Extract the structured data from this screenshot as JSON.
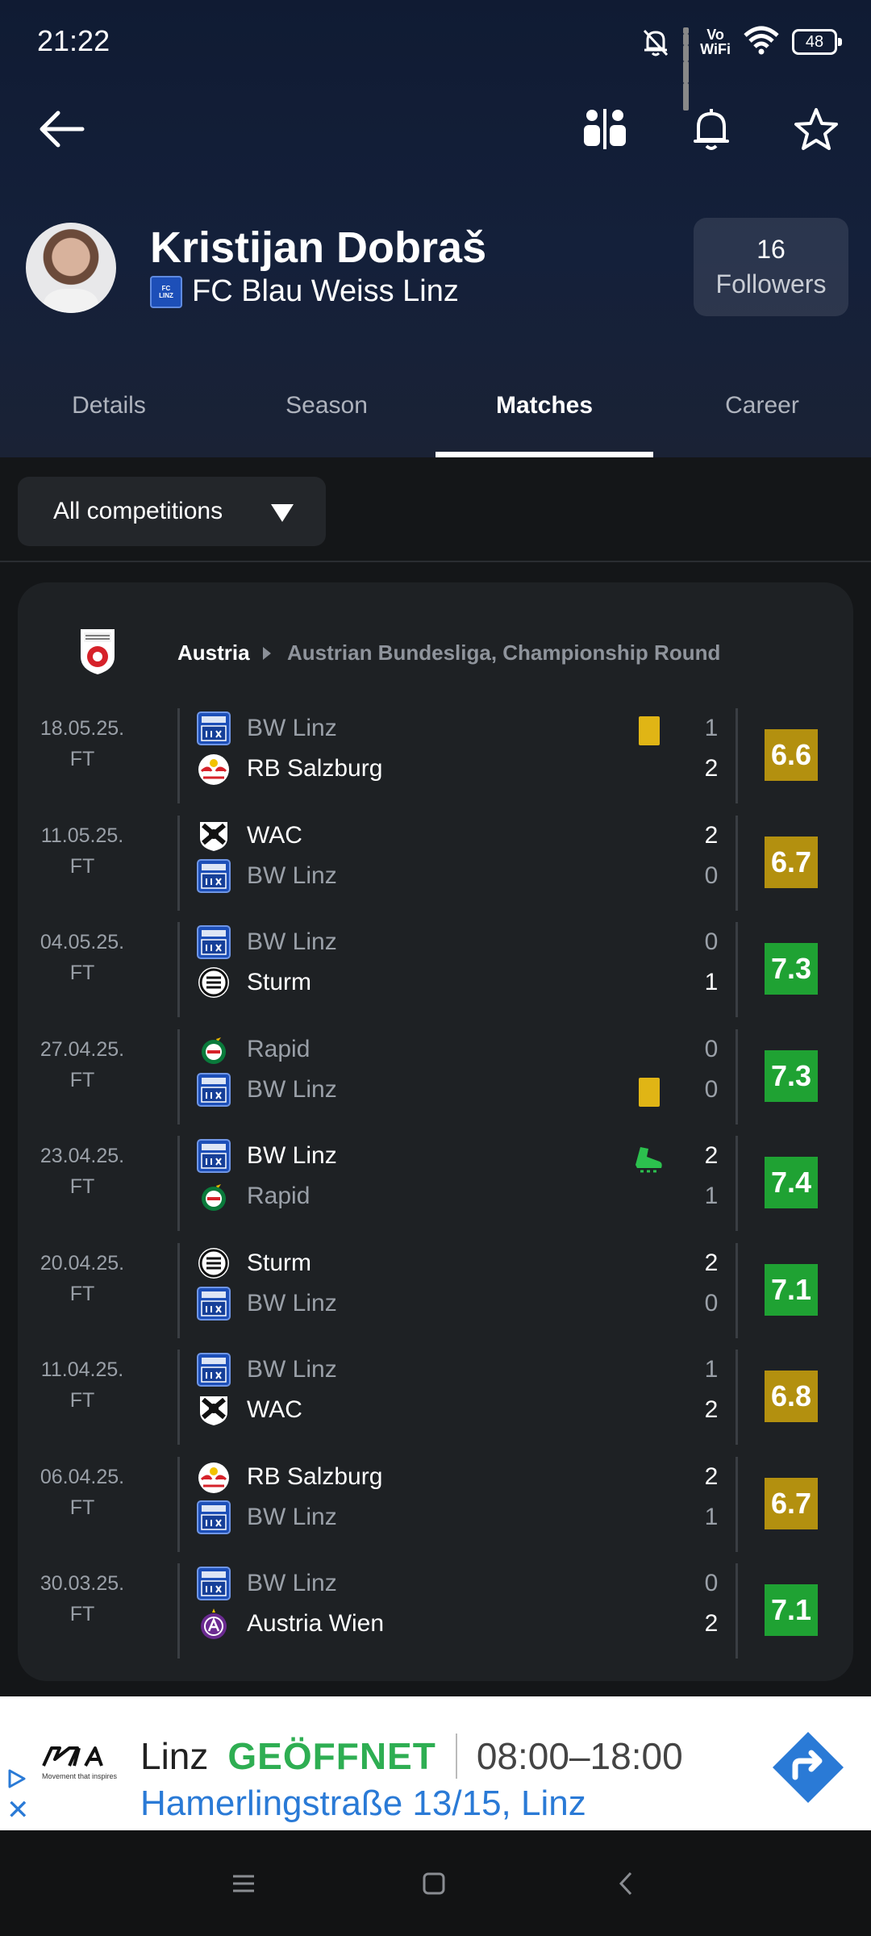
{
  "status_bar": {
    "time": "21:22",
    "vowifi_top": "Vo",
    "vowifi_bottom": "WiFi",
    "battery": "48"
  },
  "player": {
    "name": "Kristijan Dobraš",
    "club": "FC Blau Weiss Linz",
    "followers_count": "16",
    "followers_label": "Followers"
  },
  "tabs": [
    {
      "label": "Details",
      "active": false
    },
    {
      "label": "Season",
      "active": false
    },
    {
      "label": "Matches",
      "active": true
    },
    {
      "label": "Career",
      "active": false
    }
  ],
  "filter": {
    "label": "All competitions"
  },
  "competition": {
    "country": "Austria",
    "name": "Austrian Bundesliga, Championship Round"
  },
  "matches": [
    {
      "date": "18.05.25.",
      "status": "FT",
      "home": "BW Linz",
      "away": "RB Salzburg",
      "home_score": "1",
      "away_score": "2",
      "rating": "6.6",
      "rating_color": "#b3900f"
    },
    {
      "date": "11.05.25.",
      "status": "FT",
      "home": "WAC",
      "away": "BW Linz",
      "home_score": "2",
      "away_score": "0",
      "rating": "6.7",
      "rating_color": "#b3900f"
    },
    {
      "date": "04.05.25.",
      "status": "FT",
      "home": "BW Linz",
      "away": "Sturm",
      "home_score": "0",
      "away_score": "1",
      "rating": "7.3",
      "rating_color": "#1fa233"
    },
    {
      "date": "27.04.25.",
      "status": "FT",
      "home": "Rapid",
      "away": "BW Linz",
      "home_score": "0",
      "away_score": "0",
      "rating": "7.3",
      "rating_color": "#1fa233"
    },
    {
      "date": "23.04.25.",
      "status": "FT",
      "home": "BW Linz",
      "away": "Rapid",
      "home_score": "2",
      "away_score": "1",
      "rating": "7.4",
      "rating_color": "#1fa233"
    },
    {
      "date": "20.04.25.",
      "status": "FT",
      "home": "Sturm",
      "away": "BW Linz",
      "home_score": "2",
      "away_score": "0",
      "rating": "7.1",
      "rating_color": "#1fa233"
    },
    {
      "date": "11.04.25.",
      "status": "FT",
      "home": "BW Linz",
      "away": "WAC",
      "home_score": "1",
      "away_score": "2",
      "rating": "6.8",
      "rating_color": "#b3900f"
    },
    {
      "date": "06.04.25.",
      "status": "FT",
      "home": "RB Salzburg",
      "away": "BW Linz",
      "home_score": "2",
      "away_score": "1",
      "rating": "6.7",
      "rating_color": "#b3900f"
    },
    {
      "date": "30.03.25.",
      "status": "FT",
      "home": "BW Linz",
      "away": "Austria Wien",
      "home_score": "0",
      "away_score": "2",
      "rating": "7.1",
      "rating_color": "#1fa233"
    }
  ],
  "ad": {
    "city": "Linz",
    "open_status": "GEÖFFNET",
    "hours": "08:00–18:00",
    "address": "Hamerlingstraße 13/15, Linz",
    "brand_tagline": "Movement that inspires",
    "brand_name": "KIA",
    "close_glyph": "✕"
  },
  "icons": {
    "back": "arrow-left-icon",
    "compare": "compare-players-icon",
    "bell": "bell-icon",
    "star": "star-icon",
    "yellow_card": "yellow-card-icon",
    "goal_boot": "boot-icon",
    "directions": "directions-icon"
  }
}
